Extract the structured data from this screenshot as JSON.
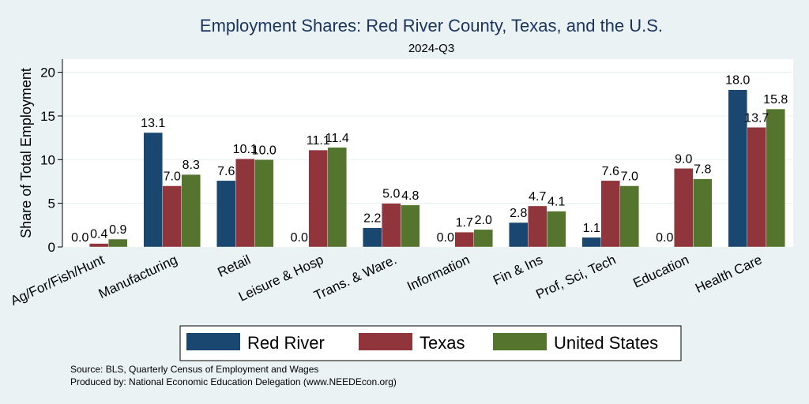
{
  "chart_data": {
    "type": "bar",
    "title": "Employment Shares: Red River County, Texas, and the U.S.",
    "subtitle": "2024-Q3",
    "ylabel": "Share of Total Employment",
    "xlabel": "",
    "ylim": [
      0,
      21.5
    ],
    "yticks": [
      0,
      5,
      10,
      15,
      20
    ],
    "grid": true,
    "legend_position": "bottom",
    "categories": [
      "Ag/For/Fish/Hunt",
      "Manufacturing",
      "Retail",
      "Leisure & Hosp",
      "Trans. & Ware.",
      "Information",
      "Fin & Ins",
      "Prof, Sci, Tech",
      "Education",
      "Health Care"
    ],
    "series": [
      {
        "name": "Red River",
        "color": "#1a476f",
        "values": [
          0.0,
          13.1,
          7.6,
          0.0,
          2.2,
          0.0,
          2.8,
          1.1,
          0.0,
          18.0
        ]
      },
      {
        "name": "Texas",
        "color": "#90353b",
        "values": [
          0.4,
          7.0,
          10.1,
          11.1,
          5.0,
          1.7,
          4.7,
          7.6,
          9.0,
          13.7
        ]
      },
      {
        "name": "United States",
        "color": "#55752f",
        "values": [
          0.9,
          8.3,
          10.0,
          11.4,
          4.8,
          2.0,
          4.1,
          7.0,
          7.8,
          15.8
        ]
      }
    ]
  },
  "notes": {
    "source": "Source: BLS, Quarterly Census of Employment and Wages",
    "produced": "Produced by: National Economic Education Delegation (www.NEEDEcon.org)"
  }
}
